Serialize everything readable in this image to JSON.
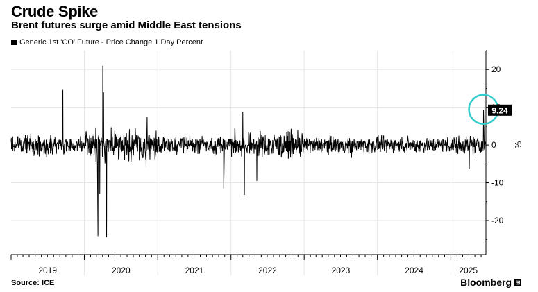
{
  "title": "Crude Spike",
  "subtitle": "Brent futures surge amid Middle East tensions",
  "legend_label": "Generic 1st 'CO' Future - Price Change 1 Day Percent",
  "source": "Source: ICE",
  "brand": "Bloomberg",
  "colors": {
    "line": "#000000",
    "grid": "#e6e6e6",
    "highlight": "#33cccc",
    "callout_bg": "#000000"
  },
  "chart_data": {
    "type": "line",
    "ylabel": "%",
    "ylim": [
      -29,
      25
    ],
    "yticks": [
      20,
      10,
      0,
      -10,
      -20
    ],
    "ytick_labels": [
      "20",
      "10",
      "0",
      "-10",
      "-20"
    ],
    "x_range": [
      "2019-01-01",
      "2025-06-25"
    ],
    "year_labels": [
      "2019",
      "2020",
      "2021",
      "2022",
      "2023",
      "2024",
      "2025"
    ],
    "year_starts": [
      "2019-01-01",
      "2020-01-01",
      "2021-01-01",
      "2022-01-01",
      "2023-01-01",
      "2024-01-01",
      "2025-01-01"
    ],
    "last_value": 9.24,
    "last_value_label": "9.24",
    "notable_points": [
      {
        "date": "2019-09-16",
        "value": 14.6
      },
      {
        "date": "2020-03-09",
        "value": -24.1
      },
      {
        "date": "2020-03-18",
        "value": -13.0
      },
      {
        "date": "2020-04-02",
        "value": 21.0
      },
      {
        "date": "2020-04-06",
        "value": 14.0
      },
      {
        "date": "2020-04-21",
        "value": -24.4
      },
      {
        "date": "2020-11-09",
        "value": 7.5
      },
      {
        "date": "2021-11-26",
        "value": -11.5
      },
      {
        "date": "2022-03-01",
        "value": 8.8
      },
      {
        "date": "2022-03-09",
        "value": -13.2
      },
      {
        "date": "2022-05-10",
        "value": -9.5
      },
      {
        "date": "2025-04-03",
        "value": -6.4
      },
      {
        "date": "2025-06-13",
        "value": 9.24
      }
    ],
    "typical_daily_amplitude": 2.0
  }
}
